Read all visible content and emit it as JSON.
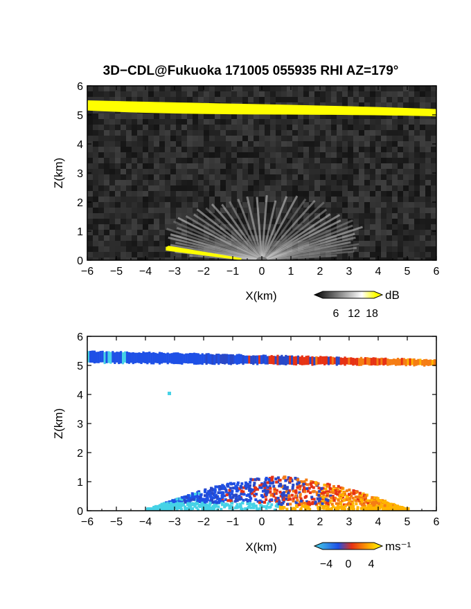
{
  "title": "3D−CDL@Fukuoka 171005 055935 RHI AZ=179°",
  "colors": {
    "echo_yellow": "#ffff00",
    "noise_background": "#2a2a2a",
    "negative_velocity": "#1e50e6",
    "positive_velocity": "#e63214",
    "light_negative": "#46d2e6"
  },
  "chart_data": [
    {
      "type": "heatmap",
      "panel": "top",
      "variable": "reflectivity",
      "xlabel": "X(km)",
      "ylabel": "Z(km)",
      "xlim": [
        -6,
        6
      ],
      "ylim": [
        0,
        6
      ],
      "xticks": [
        -6,
        -5,
        -4,
        -3,
        -2,
        -1,
        0,
        1,
        2,
        3,
        4,
        5,
        6
      ],
      "yticks": [
        0,
        1,
        2,
        3,
        4,
        5,
        6
      ],
      "grid": false,
      "colorbar": {
        "unit": "dB",
        "ticks": [
          "6",
          "12",
          "18"
        ],
        "range": [
          0,
          20
        ],
        "colors": [
          "#000000",
          "#ffffff",
          "#ffff00"
        ]
      },
      "features": [
        {
          "name": "cloud layer",
          "x": [
            -6,
            6
          ],
          "z_top": [
            5.5,
            5.2
          ],
          "z_bottom": [
            5.15,
            4.95
          ],
          "value_dB": 20
        },
        {
          "name": "ground clutter fan",
          "x": [
            -4,
            4
          ],
          "z": [
            0,
            1.2
          ],
          "value_dB": 10
        },
        {
          "name": "surface echo",
          "x": [
            -3.3,
            -0.7
          ],
          "z": [
            0.45,
            0.0
          ],
          "value_dB": 20
        }
      ]
    },
    {
      "type": "heatmap",
      "panel": "bottom",
      "variable": "doppler velocity",
      "xlabel": "X(km)",
      "ylabel": "Z(km)",
      "xlim": [
        -6,
        6
      ],
      "ylim": [
        0,
        6
      ],
      "xticks": [
        -6,
        -5,
        -4,
        -3,
        -2,
        -1,
        0,
        1,
        2,
        3,
        4,
        5,
        6
      ],
      "yticks": [
        0,
        1,
        2,
        3,
        4,
        5,
        6
      ],
      "grid": false,
      "colorbar": {
        "unit": "ms⁻¹",
        "ticks": [
          "−4",
          "0",
          "4"
        ],
        "range": [
          -5,
          5
        ],
        "colors": [
          "#46d2e6",
          "#1e50e6",
          "#e63214",
          "#ffaa00",
          "#ffff00"
        ]
      },
      "features": [
        {
          "name": "cloud layer",
          "x": [
            -6,
            6
          ],
          "velocity_ms": [
            -4,
            3.5
          ]
        },
        {
          "name": "isolated pixel",
          "x": -3.15,
          "z": 4.05,
          "velocity_ms": -5
        },
        {
          "name": "boundary layer",
          "x": [
            -4,
            5
          ],
          "z": [
            0,
            1.2
          ],
          "velocity_ms": [
            -4,
            4
          ]
        }
      ]
    }
  ]
}
